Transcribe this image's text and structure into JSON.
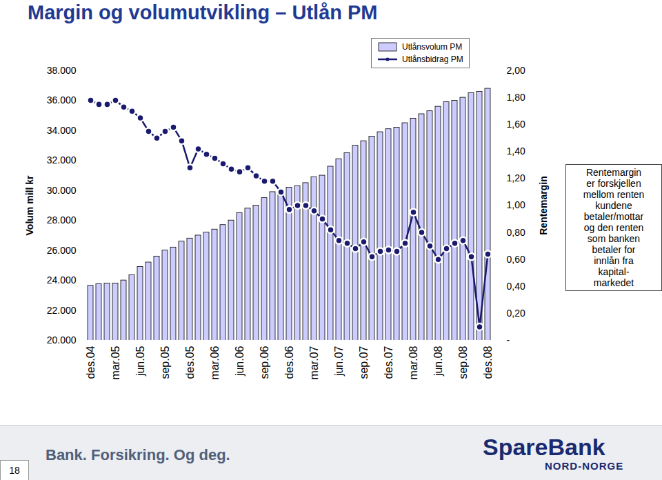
{
  "chart_data": {
    "type": "bar",
    "title": "Margin og volumutvikling – Utlån PM",
    "ylabel": "Volum mill kr",
    "y2label": "Rentemargin",
    "categories": [
      "des.04",
      null,
      null,
      "mar.05",
      null,
      null,
      "jun.05",
      null,
      null,
      "sep.05",
      null,
      null,
      "des.05",
      null,
      null,
      "mar.06",
      null,
      null,
      "jun.06",
      null,
      null,
      "sep.06",
      null,
      null,
      "des.06",
      null,
      null,
      "mar.07",
      null,
      null,
      "jun.07",
      null,
      null,
      "sep.07",
      null,
      null,
      "des.07",
      null,
      null,
      "mar.08",
      null,
      null,
      "jun.08",
      null,
      null,
      "sep.08",
      null,
      null,
      "des.08"
    ],
    "series": [
      {
        "name": "Utlånsvolum PM",
        "type": "bar",
        "color": "#ccccff",
        "values": [
          23650,
          23750,
          23800,
          23800,
          24000,
          24350,
          24900,
          25200,
          25600,
          26000,
          26200,
          26600,
          26800,
          27000,
          27200,
          27400,
          27700,
          28000,
          28500,
          28800,
          29000,
          29500,
          29900,
          30000,
          30200,
          30300,
          30500,
          30900,
          31000,
          31600,
          32100,
          32500,
          33000,
          33300,
          33600,
          33900,
          34100,
          34200,
          34500,
          34800,
          35100,
          35300,
          35600,
          35900,
          36000,
          36200,
          36500,
          36600,
          36800
        ]
      },
      {
        "name": "Utlånsbidrag PM",
        "type": "line",
        "axis": "y2",
        "color": "#1a1a6e",
        "marker": "circle",
        "values": [
          1.78,
          1.75,
          1.75,
          1.78,
          1.73,
          1.7,
          1.65,
          1.55,
          1.5,
          1.55,
          1.58,
          1.48,
          1.28,
          1.42,
          1.38,
          1.35,
          1.31,
          1.27,
          1.25,
          1.28,
          1.22,
          1.18,
          1.18,
          1.1,
          0.97,
          1.0,
          1.0,
          0.96,
          0.9,
          0.82,
          0.74,
          0.72,
          0.68,
          0.73,
          0.62,
          0.66,
          0.67,
          0.66,
          0.72,
          0.95,
          0.8,
          0.7,
          0.6,
          0.68,
          0.72,
          0.74,
          0.62,
          0.1,
          0.64
        ]
      }
    ],
    "ylim": [
      20000,
      38000
    ],
    "yticks": [
      {
        "value": 20000,
        "label": "20.000"
      },
      {
        "value": 22000,
        "label": "22.000"
      },
      {
        "value": 24000,
        "label": "24.000"
      },
      {
        "value": 26000,
        "label": "26.000"
      },
      {
        "value": 28000,
        "label": "28.000"
      },
      {
        "value": 30000,
        "label": "30.000"
      },
      {
        "value": 32000,
        "label": "32.000"
      },
      {
        "value": 34000,
        "label": "34.000"
      },
      {
        "value": 36000,
        "label": "36.000"
      },
      {
        "value": 38000,
        "label": "38.000"
      }
    ],
    "y2lim": [
      0,
      2
    ],
    "y2ticks": [
      {
        "value": 0,
        "label": "-"
      },
      {
        "value": 0.2,
        "label": "0,20"
      },
      {
        "value": 0.4,
        "label": "0,40"
      },
      {
        "value": 0.6,
        "label": "0,60"
      },
      {
        "value": 0.8,
        "label": "0,80"
      },
      {
        "value": 1,
        "label": "1,00"
      },
      {
        "value": 1.2,
        "label": "1,20"
      },
      {
        "value": 1.4,
        "label": "1,40"
      },
      {
        "value": 1.6,
        "label": "1,60"
      },
      {
        "value": 1.8,
        "label": "1,80"
      },
      {
        "value": 2,
        "label": "2,00"
      }
    ],
    "grid": false,
    "legend": "top",
    "annotations": [
      "Rentemargin\ner forskjellen\nmellom renten\nkundene\nbetaler/mottar\nog den renten\nsom banken\nbetaler for\ninnlån fra\nkapital-\nmarkedet"
    ]
  },
  "footer": {
    "slogan": "Bank. Forsikring. Og deg.",
    "brand": "SpareBank",
    "brand_sub": "NORD-NORGE",
    "page": 18
  }
}
